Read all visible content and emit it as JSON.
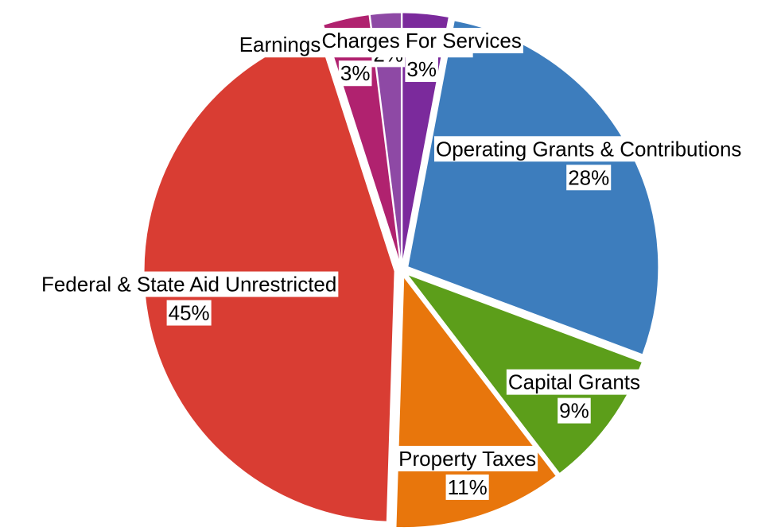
{
  "chart_data": {
    "type": "pie",
    "categories": [
      "Charges For Services",
      "Operating Grants & Contributions",
      "Capital Grants",
      "Property Taxes",
      "Federal & State Aid Unrestricted",
      "Earnings On Investments",
      null
    ],
    "values": [
      3,
      28,
      9,
      11,
      45,
      3,
      2
    ],
    "colors": [
      "#7b2a9c",
      "#3d7dbd",
      "#5c9e1a",
      "#e8760c",
      "#d93d33",
      "#b0226f",
      "#8e49a5"
    ]
  }
}
